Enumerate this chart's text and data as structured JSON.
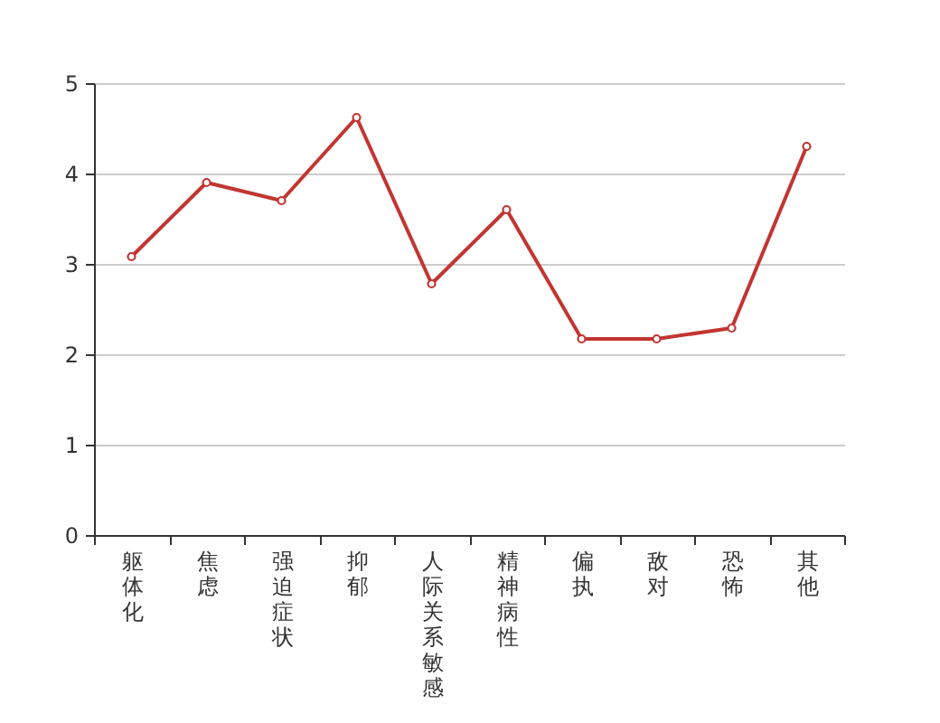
{
  "chart_data": {
    "type": "line",
    "categories": [
      "躯体化",
      "焦虑",
      "强迫症状",
      "抑郁",
      "人际关系敏感",
      "精神病性",
      "偏执",
      "敌对",
      "恐怖",
      "其他"
    ],
    "series": [
      {
        "color": "#c23531",
        "values": [
          3.08,
          3.9,
          3.7,
          4.62,
          2.78,
          3.6,
          2.17,
          2.17,
          2.29,
          4.3
        ]
      }
    ],
    "ylim": [
      0,
      5
    ],
    "yticks": [
      0,
      1,
      2,
      3,
      4,
      5
    ],
    "grid": "y",
    "marker": "circle"
  }
}
